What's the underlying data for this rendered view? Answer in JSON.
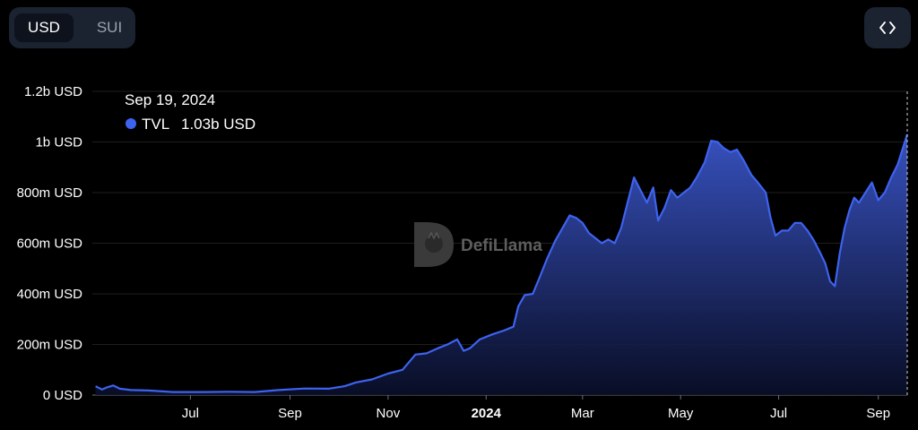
{
  "toolbar": {
    "options": [
      {
        "label": "USD",
        "active": true
      },
      {
        "label": "SUI",
        "active": false
      }
    ],
    "embed_icon": "code-brackets-icon"
  },
  "watermark": {
    "text": "DefiLlama",
    "icon": "llama-logo-icon"
  },
  "tooltip": {
    "date": "Sep 19, 2024",
    "series_name": "TVL",
    "value": "1.03b USD",
    "color": "#3d63f0"
  },
  "chart_data": {
    "type": "area",
    "series": [
      {
        "name": "TVL",
        "color": "#3d63f0",
        "points": [
          [
            "2023-05-03",
            35
          ],
          [
            "2023-05-07",
            22
          ],
          [
            "2023-05-10",
            30
          ],
          [
            "2023-05-14",
            38
          ],
          [
            "2023-05-18",
            25
          ],
          [
            "2023-05-25",
            20
          ],
          [
            "2023-06-05",
            18
          ],
          [
            "2023-06-20",
            12
          ],
          [
            "2023-07-10",
            12
          ],
          [
            "2023-07-25",
            13
          ],
          [
            "2023-08-10",
            12
          ],
          [
            "2023-08-25",
            20
          ],
          [
            "2023-09-10",
            26
          ],
          [
            "2023-09-25",
            25
          ],
          [
            "2023-10-05",
            35
          ],
          [
            "2023-10-12",
            50
          ],
          [
            "2023-10-22",
            62
          ],
          [
            "2023-11-01",
            85
          ],
          [
            "2023-11-10",
            100
          ],
          [
            "2023-11-18",
            160
          ],
          [
            "2023-11-25",
            165
          ],
          [
            "2023-12-02",
            185
          ],
          [
            "2023-12-08",
            200
          ],
          [
            "2023-12-14",
            220
          ],
          [
            "2023-12-18",
            175
          ],
          [
            "2023-12-22",
            185
          ],
          [
            "2023-12-28",
            220
          ],
          [
            "2024-01-05",
            240
          ],
          [
            "2024-01-12",
            255
          ],
          [
            "2024-01-18",
            270
          ],
          [
            "2024-01-21",
            350
          ],
          [
            "2024-01-25",
            395
          ],
          [
            "2024-01-30",
            400
          ],
          [
            "2024-02-03",
            460
          ],
          [
            "2024-02-08",
            540
          ],
          [
            "2024-02-13",
            610
          ],
          [
            "2024-02-18",
            665
          ],
          [
            "2024-02-22",
            710
          ],
          [
            "2024-02-26",
            700
          ],
          [
            "2024-03-01",
            680
          ],
          [
            "2024-03-05",
            640
          ],
          [
            "2024-03-09",
            620
          ],
          [
            "2024-03-13",
            600
          ],
          [
            "2024-03-17",
            615
          ],
          [
            "2024-03-21",
            600
          ],
          [
            "2024-03-25",
            660
          ],
          [
            "2024-03-29",
            760
          ],
          [
            "2024-04-02",
            860
          ],
          [
            "2024-04-06",
            810
          ],
          [
            "2024-04-10",
            760
          ],
          [
            "2024-04-14",
            820
          ],
          [
            "2024-04-17",
            690
          ],
          [
            "2024-04-21",
            740
          ],
          [
            "2024-04-25",
            810
          ],
          [
            "2024-04-29",
            780
          ],
          [
            "2024-05-03",
            800
          ],
          [
            "2024-05-07",
            820
          ],
          [
            "2024-05-11",
            860
          ],
          [
            "2024-05-16",
            920
          ],
          [
            "2024-05-20",
            1005
          ],
          [
            "2024-05-24",
            1000
          ],
          [
            "2024-05-28",
            975
          ],
          [
            "2024-06-01",
            960
          ],
          [
            "2024-06-05",
            970
          ],
          [
            "2024-06-09",
            930
          ],
          [
            "2024-06-14",
            870
          ],
          [
            "2024-06-18",
            840
          ],
          [
            "2024-06-23",
            800
          ],
          [
            "2024-06-26",
            700
          ],
          [
            "2024-06-29",
            630
          ],
          [
            "2024-07-03",
            650
          ],
          [
            "2024-07-07",
            650
          ],
          [
            "2024-07-11",
            680
          ],
          [
            "2024-07-15",
            680
          ],
          [
            "2024-07-19",
            650
          ],
          [
            "2024-07-23",
            610
          ],
          [
            "2024-07-27",
            560
          ],
          [
            "2024-07-30",
            520
          ],
          [
            "2024-08-02",
            450
          ],
          [
            "2024-08-05",
            430
          ],
          [
            "2024-08-08",
            560
          ],
          [
            "2024-08-11",
            660
          ],
          [
            "2024-08-14",
            730
          ],
          [
            "2024-08-17",
            780
          ],
          [
            "2024-08-20",
            760
          ],
          [
            "2024-08-24",
            800
          ],
          [
            "2024-08-28",
            840
          ],
          [
            "2024-09-01",
            770
          ],
          [
            "2024-09-05",
            800
          ],
          [
            "2024-09-09",
            860
          ],
          [
            "2024-09-13",
            910
          ],
          [
            "2024-09-16",
            970
          ],
          [
            "2024-09-19",
            1030
          ]
        ]
      }
    ],
    "x_range": [
      "2023-05-01",
      "2024-09-19"
    ],
    "x_ticks": [
      {
        "date": "2023-07-01",
        "label": "Jul",
        "bold": false
      },
      {
        "date": "2023-09-01",
        "label": "Sep",
        "bold": false
      },
      {
        "date": "2023-11-01",
        "label": "Nov",
        "bold": false
      },
      {
        "date": "2024-01-01",
        "label": "2024",
        "bold": true
      },
      {
        "date": "2024-03-01",
        "label": "Mar",
        "bold": false
      },
      {
        "date": "2024-05-01",
        "label": "May",
        "bold": false
      },
      {
        "date": "2024-07-01",
        "label": "Jul",
        "bold": false
      },
      {
        "date": "2024-09-01",
        "label": "Sep",
        "bold": false
      }
    ],
    "y_unit": "million USD",
    "ylim": [
      0,
      1200
    ],
    "y_ticks": [
      {
        "value": 0,
        "label": "0 USD"
      },
      {
        "value": 200,
        "label": "200m USD"
      },
      {
        "value": 400,
        "label": "400m USD"
      },
      {
        "value": 600,
        "label": "600m USD"
      },
      {
        "value": 800,
        "label": "800m USD"
      },
      {
        "value": 1000,
        "label": "1b USD"
      },
      {
        "value": 1200,
        "label": "1.2b USD"
      }
    ],
    "grid": true,
    "hover_date": "2024-09-19"
  }
}
